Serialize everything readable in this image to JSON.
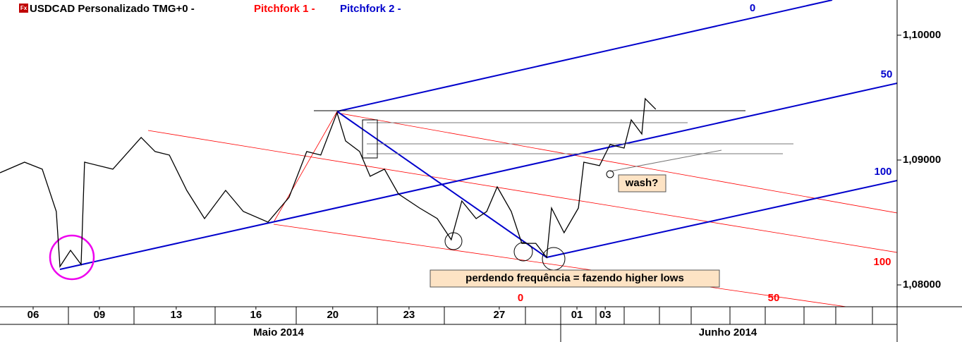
{
  "chart_data": {
    "type": "line",
    "header": [
      {
        "text": "USDCAD Personalizado TMG+0 -",
        "color": "#000000"
      },
      {
        "text": "Pitchfork 1 -",
        "color": "#ff0000"
      },
      {
        "text": "Pitchfork 2 -",
        "color": "#0000cc"
      }
    ],
    "icon": "Fx",
    "x": [
      -1.16,
      -0.3,
      0.32,
      0.81,
      0.94,
      1.31,
      1.68,
      1.8,
      2.79,
      3.78,
      4.27,
      4.77,
      5.38,
      6.0,
      6.74,
      7.36,
      8.22,
      8.96,
      9.58,
      10.07,
      10.64,
      10.94,
      11.43,
      11.8,
      12.3,
      12.79,
      13.53,
      14.15,
      14.64,
      15.01,
      15.51,
      15.88,
      16.25,
      16.74,
      17.11,
      17.6,
      17.98,
      18.15,
      18.59,
      19.09,
      19.28,
      19.83,
      20.2,
      20.69,
      20.94,
      21.31,
      21.43,
      21.8
    ],
    "series": [
      {
        "name": "USDCAD Personalizado TMG+0 -",
        "color": "#000000",
        "values": [
          1.08898,
          1.08983,
          1.08927,
          1.08588,
          1.08147,
          1.08277,
          1.08164,
          1.08983,
          1.08927,
          1.09181,
          1.09068,
          1.0904,
          1.08757,
          1.08531,
          1.08757,
          1.08588,
          1.08503,
          1.08701,
          1.09068,
          1.0904,
          1.09379,
          1.09153,
          1.09068,
          1.0887,
          1.08927,
          1.08729,
          1.08616,
          1.08531,
          1.08362,
          1.08672,
          1.08531,
          1.08588,
          1.08785,
          1.08588,
          1.08333,
          1.08333,
          1.0822,
          1.08616,
          1.08418,
          1.08616,
          1.08983,
          1.08955,
          1.09124,
          1.09096,
          1.09322,
          1.09209,
          1.09492,
          1.09407
        ]
      }
    ],
    "xlim": [
      -1.16,
      30.25
    ],
    "xticks": [
      {
        "value": 0,
        "label": "06"
      },
      {
        "value": 2.32,
        "label": "09"
      },
      {
        "value": 5.01,
        "label": "13"
      },
      {
        "value": 7.8,
        "label": "16"
      },
      {
        "value": 10.49,
        "label": "20"
      },
      {
        "value": 13.16,
        "label": "23"
      },
      {
        "value": 16.32,
        "label": "27"
      },
      {
        "value": 19.04,
        "label": "01"
      },
      {
        "value": 20.03,
        "label": "03"
      }
    ],
    "months": [
      "Maio 2014",
      "Junho 2014"
    ],
    "ylim": [
      1.07825,
      1.10282
    ],
    "yticks": [
      {
        "value": 1.08,
        "label": "1,08000"
      },
      {
        "value": 1.09,
        "label": "1,09000"
      },
      {
        "value": 1.1,
        "label": "1,10000"
      }
    ],
    "annotations": [
      {
        "text": "0",
        "color": "#0000cc"
      },
      {
        "text": "50",
        "color": "#0000cc"
      },
      {
        "text": "100",
        "color": "#0000cc"
      },
      {
        "text": "100",
        "color": "#ff0000"
      },
      {
        "text": "50",
        "color": "#ff0000"
      },
      {
        "text": "0",
        "color": "#ff0000"
      },
      {
        "text": "wash?",
        "color": "#000000"
      },
      {
        "text": "perdendo frequência = fazendo higher lows",
        "color": "#000000"
      }
    ]
  }
}
